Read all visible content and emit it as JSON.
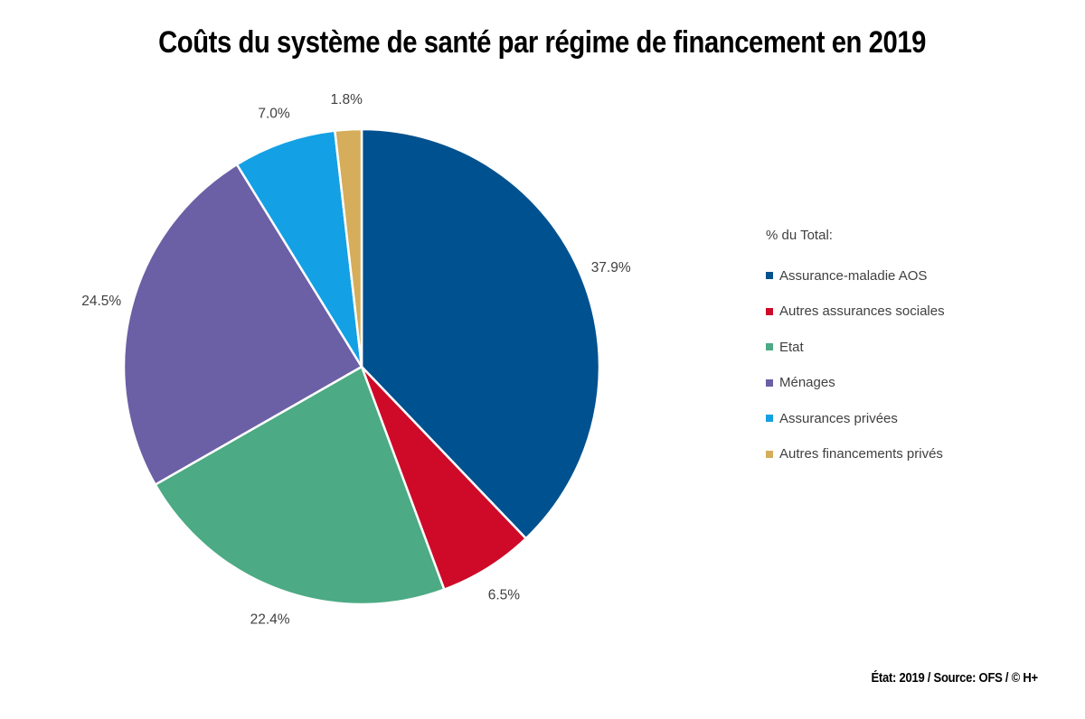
{
  "header": {
    "title": "Coûts du système de santé par régime de financement en 2019"
  },
  "legend": {
    "title": "% du Total:"
  },
  "footer": {
    "source_text": "État: 2019 / Source: OFS / © H+"
  },
  "chart_data": {
    "type": "pie",
    "title": "Coûts du système de santé par régime de financement en 2019",
    "unit": "%",
    "direction": "clockwise",
    "start_angle": "12-o-clock",
    "legend_position": "right",
    "label_position": "outside",
    "label_color": "#404040",
    "slice_gap_color": "#ffffff",
    "categories": [
      "Assurance-maladie AOS",
      "Autres assurances sociales",
      "Etat",
      "Ménages",
      "Assurances privées",
      "Autres financements privés"
    ],
    "values": [
      37.9,
      6.5,
      22.4,
      24.5,
      7.0,
      1.8
    ],
    "series": [
      {
        "id": "assurance-maladie-aos",
        "label": "Assurance-maladie AOS",
        "value": 37.9,
        "display": "37.9%",
        "color": "#00518f"
      },
      {
        "id": "autres-assurances-sociales",
        "label": "Autres assurances sociales",
        "value": 6.5,
        "display": "6.5%",
        "color": "#ce0a28"
      },
      {
        "id": "etat",
        "label": "Etat",
        "value": 22.4,
        "display": "22.4%",
        "color": "#4caa84"
      },
      {
        "id": "menages",
        "label": "Ménages",
        "value": 24.5,
        "display": "24.5%",
        "color": "#6b5fa5"
      },
      {
        "id": "assurances-privees",
        "label": "Assurances privées",
        "value": 7.0,
        "display": "7.0%",
        "color": "#14a0e4"
      },
      {
        "id": "autres-financements-prives",
        "label": "Autres financements privés",
        "value": 1.8,
        "display": "1.8%",
        "color": "#d5ad5b"
      }
    ]
  }
}
